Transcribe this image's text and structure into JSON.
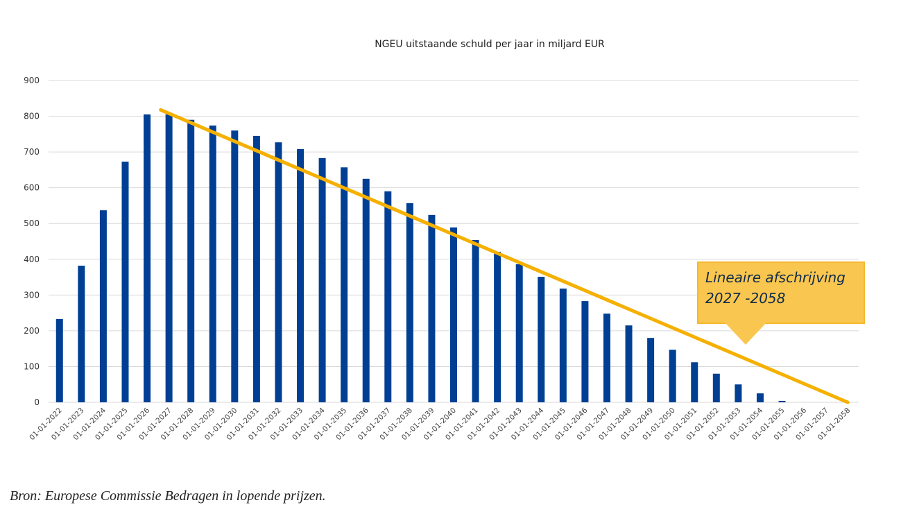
{
  "chart_data": {
    "type": "bar",
    "title": "NGEU uitstaande schuld per jaar in miljard EUR",
    "xlabel": "",
    "ylabel": "",
    "ylim": [
      0,
      900
    ],
    "yticks": [
      0,
      100,
      200,
      300,
      400,
      500,
      600,
      700,
      800,
      900
    ],
    "grid": true,
    "categories": [
      "01-01-2022",
      "01-01-2023",
      "01-01-2024",
      "01-01-2025",
      "01-01-2026",
      "01-01-2027",
      "01-01-2028",
      "01-01-2029",
      "01-01-2030",
      "01-01-2031",
      "01-01-2032",
      "01-01-2033",
      "01-01-2034",
      "01-01-2035",
      "01-01-2036",
      "01-01-2037",
      "01-01-2038",
      "01-01-2039",
      "01-01-2040",
      "01-01-2041",
      "01-01-2042",
      "01-01-2043",
      "01-01-2044",
      "01-01-2045",
      "01-01-2046",
      "01-01-2047",
      "01-01-2048",
      "01-01-2049",
      "01-01-2050",
      "01-01-2051",
      "01-01-2052",
      "01-01-2053",
      "01-01-2054",
      "01-01-2055",
      "01-01-2056",
      "01-01-2057",
      "01-01-2058"
    ],
    "series": [
      {
        "name": "Uitstaande schuld",
        "color": "#003f94",
        "values": [
          233,
          382,
          537,
          673,
          805,
          805,
          790,
          774,
          760,
          745,
          727,
          708,
          683,
          657,
          625,
          590,
          557,
          524,
          489,
          454,
          421,
          386,
          351,
          318,
          283,
          248,
          215,
          180,
          147,
          112,
          80,
          50,
          25,
          4,
          0,
          0,
          0
        ]
      }
    ],
    "trendline": {
      "name": "Lineaire afschrijving",
      "color": "#f5b000",
      "from": {
        "category": "01-01-2027",
        "value": 810
      },
      "to": {
        "category": "01-01-2058",
        "value": 0
      }
    },
    "annotation": {
      "line1": "Lineaire afschrijving",
      "line2": "2027 -2058",
      "color": "#f9c74f"
    }
  },
  "source": "Bron: Europese Commissie Bedragen in lopende prijzen."
}
